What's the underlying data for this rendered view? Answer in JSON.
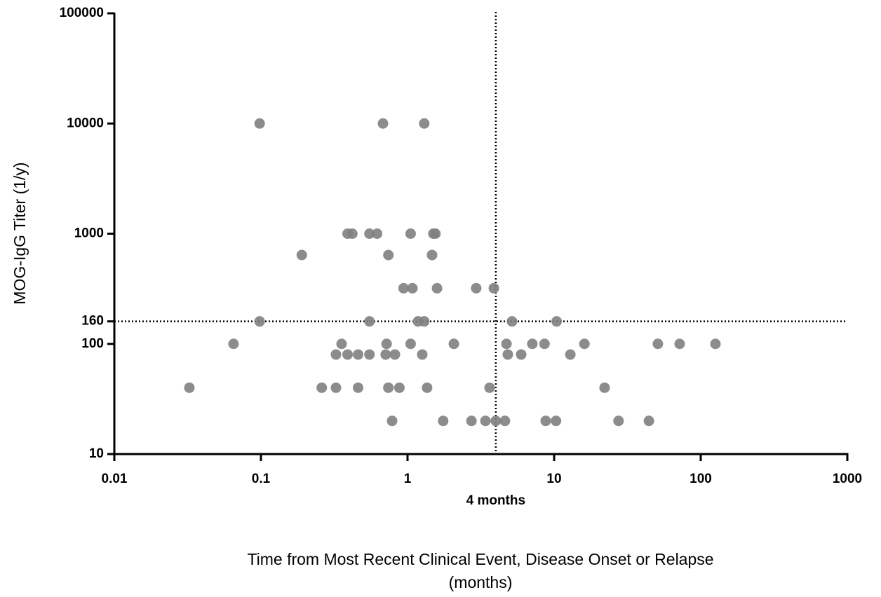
{
  "chart_data": {
    "type": "scatter",
    "xlabel": [
      "Time from Most Recent Clinical Event, Disease Onset or Relapse",
      "(months)"
    ],
    "ylabel": "MOG-IgG Titer (1/y)",
    "xscale": "log",
    "yscale": "log",
    "xlim": [
      0.01,
      1000
    ],
    "ylim": [
      10,
      100000
    ],
    "xticks": [
      0.01,
      0.1,
      1,
      10,
      100,
      1000
    ],
    "yticks": [
      10,
      100,
      160,
      1000,
      10000,
      100000
    ],
    "color": "#808080",
    "reference_lines": [
      {
        "axis": "x",
        "value": 4,
        "label": "4 months"
      },
      {
        "axis": "y",
        "value": 160
      }
    ],
    "x": [
      0.098,
      0.68,
      1.3,
      0.39,
      0.42,
      0.55,
      0.62,
      1.05,
      1.5,
      1.55,
      0.19,
      0.74,
      1.47,
      0.94,
      1.08,
      1.59,
      2.94,
      3.88,
      0.098,
      0.55,
      1.18,
      1.3,
      5.16,
      10.4,
      0.065,
      0.355,
      0.72,
      1.05,
      2.07,
      4.73,
      7.1,
      8.6,
      16.1,
      51,
      71.8,
      126,
      0.325,
      0.39,
      0.46,
      0.55,
      0.71,
      0.82,
      1.26,
      4.83,
      5.96,
      12.9,
      0.0325,
      0.26,
      0.325,
      0.46,
      0.74,
      0.88,
      1.36,
      3.63,
      22.1,
      0.785,
      1.75,
      2.73,
      3.4,
      4.0,
      4.62,
      8.76,
      10.3,
      27.5,
      44.3
    ],
    "y": [
      10000,
      10000,
      10000,
      1000,
      1000,
      1000,
      1000,
      1000,
      1000,
      1000,
      640,
      640,
      640,
      320,
      320,
      320,
      320,
      320,
      160,
      160,
      160,
      160,
      160,
      160,
      100,
      100,
      100,
      100,
      100,
      100,
      100,
      100,
      100,
      100,
      100,
      100,
      80,
      80,
      80,
      80,
      80,
      80,
      80,
      80,
      80,
      80,
      40,
      40,
      40,
      40,
      40,
      40,
      40,
      40,
      40,
      20,
      20,
      20,
      20,
      20,
      20,
      20,
      20,
      20,
      20
    ]
  }
}
